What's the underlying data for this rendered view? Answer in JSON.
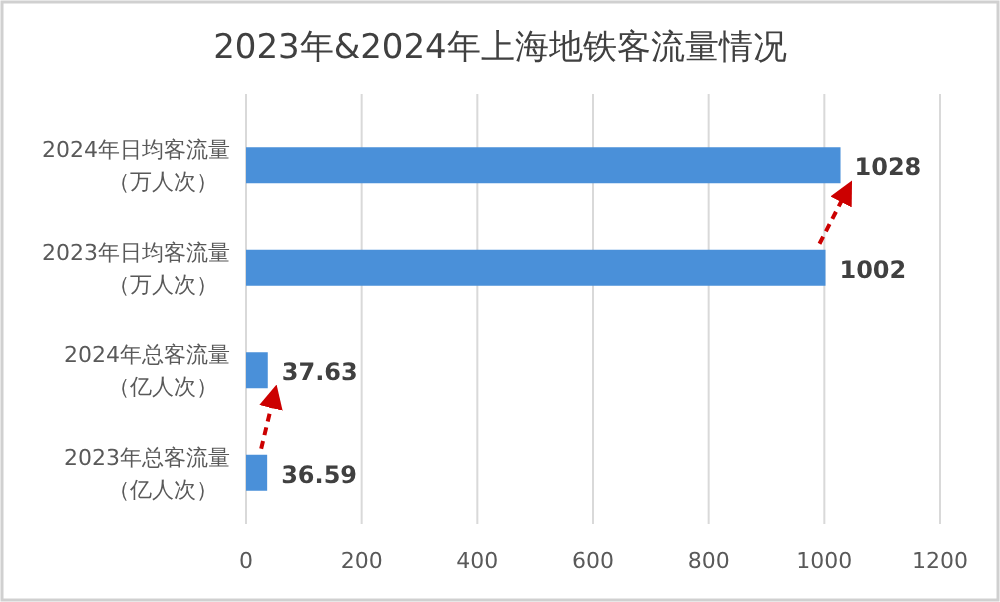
{
  "chart_data": {
    "type": "bar",
    "orientation": "horizontal",
    "title": "2023年&2024年上海地铁客流量情况",
    "categories": [
      "2024年日均客流量（万人次）",
      "2023年日均客流量（万人次）",
      "2024年总客流量（亿人次）",
      "2023年总客流量（亿人次）"
    ],
    "values": [
      1028,
      1002,
      37.63,
      36.59
    ],
    "color": "#4a90d9",
    "xlim": [
      0,
      1200
    ],
    "xticks": [
      0,
      200,
      400,
      600,
      800,
      1000,
      1200
    ],
    "grid": "x",
    "data_labels": true
  }
}
